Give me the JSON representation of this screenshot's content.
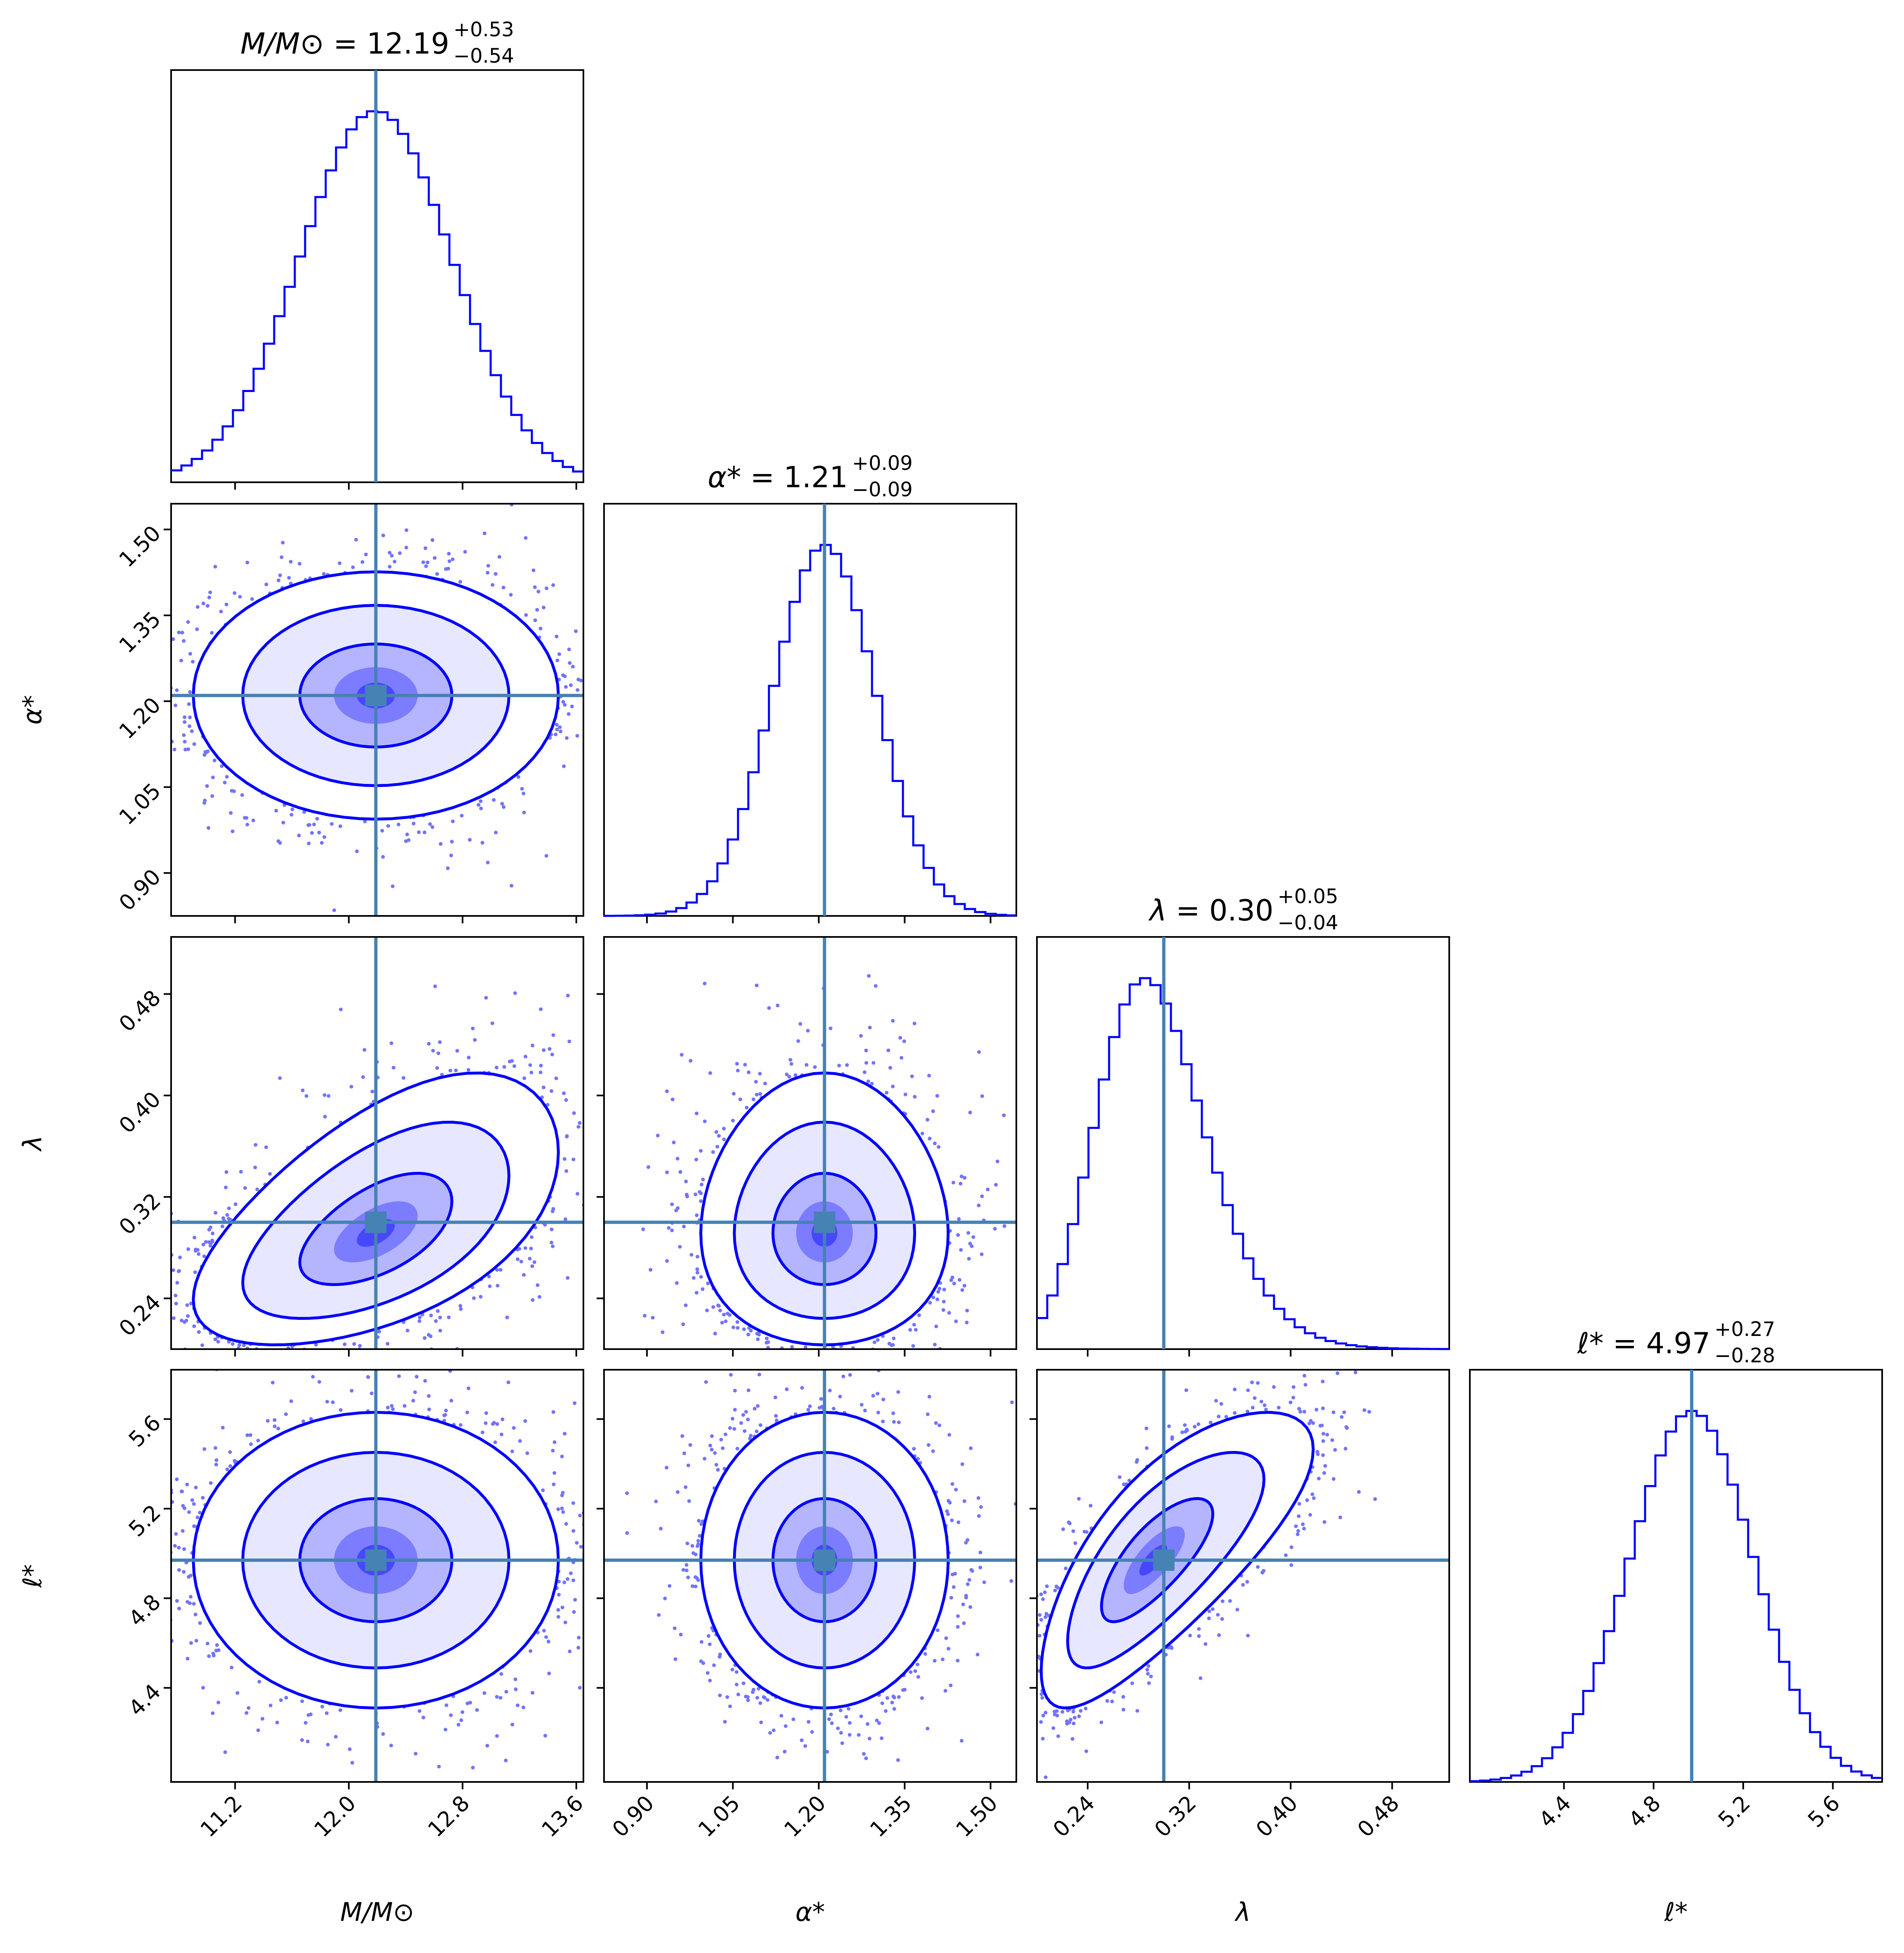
{
  "chart_data": {
    "type": "corner",
    "parameters": [
      {
        "key": "M",
        "label": "M/M⊙",
        "title_name": "M/M⊙",
        "median": 12.19,
        "err_plus": "+0.53",
        "err_minus": "−0.54",
        "median_text": "12.19",
        "range": [
          10.75,
          13.65
        ],
        "ticks": [
          11.2,
          12.0,
          12.8,
          13.6
        ],
        "tick_labels": [
          "11.2",
          "12.0",
          "12.8",
          "13.6"
        ],
        "sigma": 0.535
      },
      {
        "key": "alpha",
        "label": "α*",
        "title_name": "α*",
        "median": 1.21,
        "err_plus": "+0.09",
        "err_minus": "−0.09",
        "median_text": "1.21",
        "range": [
          0.825,
          1.545
        ],
        "ticks": [
          0.9,
          1.05,
          1.2,
          1.35,
          1.5
        ],
        "tick_labels": [
          "0.90",
          "1.05",
          "1.20",
          "1.35",
          "1.50"
        ],
        "sigma": 0.09
      },
      {
        "key": "lambda",
        "label": "λ",
        "title_name": "λ",
        "median": 0.3,
        "err_plus": "+0.05",
        "err_minus": "−0.04",
        "median_text": "0.30",
        "range": [
          0.2,
          0.525
        ],
        "ticks": [
          0.24,
          0.32,
          0.4,
          0.48
        ],
        "tick_labels": [
          "0.24",
          "0.32",
          "0.40",
          "0.48"
        ],
        "sigma": 0.045
      },
      {
        "key": "ell",
        "label": "ℓ*",
        "title_name": "ℓ*",
        "median": 4.97,
        "err_plus": "+0.27",
        "err_minus": "−0.28",
        "median_text": "4.97",
        "range": [
          3.98,
          5.82
        ],
        "ticks": [
          4.4,
          4.8,
          5.2,
          5.6
        ],
        "tick_labels": [
          "4.4",
          "4.8",
          "5.2",
          "5.6"
        ],
        "sigma": 0.275
      }
    ],
    "correlations": {
      "M-alpha": 0.0,
      "M-lambda": 0.55,
      "M-ell": 0.0,
      "alpha-lambda": 0.0,
      "alpha-ell": 0.0,
      "lambda-ell": 0.75
    },
    "lambda_skew": "right (log-normal-like)",
    "histogram_bins": 40,
    "contour_levels": 3,
    "colors": {
      "samples": "#0000ff",
      "truth_lines": "#4682b4",
      "axes": "#000000"
    },
    "grid": false,
    "legend": "none"
  }
}
